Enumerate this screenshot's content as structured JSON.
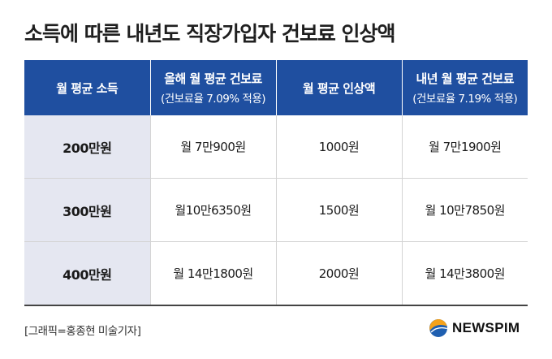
{
  "title": "소득에 따른 내년도 직장가입자 건보료 인상액",
  "table": {
    "headers": [
      {
        "main": "월 평균 소득",
        "sub": ""
      },
      {
        "main": "올해 월 평균 건보료",
        "sub": "(건보료율 7.09% 적용)"
      },
      {
        "main": "월 평균 인상액",
        "sub": ""
      },
      {
        "main": "내년 월 평균 건보료",
        "sub": "(건보료율 7.19% 적용)"
      }
    ],
    "rows": [
      [
        "200만원",
        "월 7만900원",
        "1000원",
        "월 7만1900원"
      ],
      [
        "300만원",
        "월10만6350원",
        "1500원",
        "월 10만7850원"
      ],
      [
        "400만원",
        "월 14만1800원",
        "2000원",
        "월 14만3800원"
      ]
    ]
  },
  "credit": "[그래픽=홍종현 미술기자]",
  "logo": {
    "text": "NEWSPIM",
    "icon": "newspim-logo-icon"
  },
  "colors": {
    "header_bg": "#1f4fa0",
    "income_bg": "#e5e7f1",
    "logo_orange": "#f5a21b",
    "logo_blue": "#1f5fb0"
  }
}
